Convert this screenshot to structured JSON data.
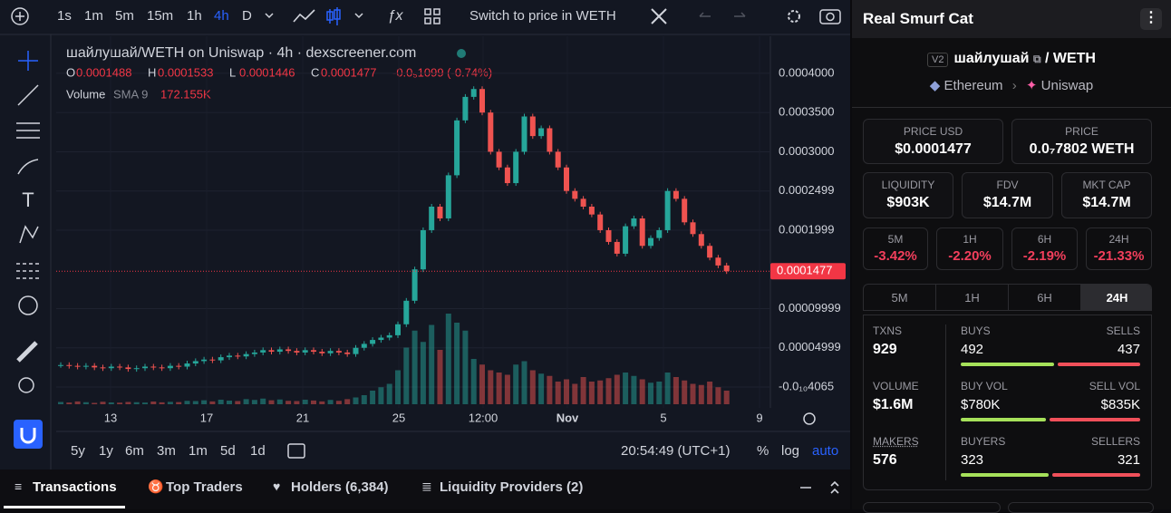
{
  "toolbar": {
    "intervals": [
      "1s",
      "1m",
      "5m",
      "15m",
      "1h",
      "4h",
      "D"
    ],
    "switch": "Switch to price in WETH"
  },
  "chart": {
    "title": "шайлушай/WETH on Uniswap · 4h · dexscreener.com",
    "ohlc": [
      {
        "key": "O",
        "value": 0.0001488
      },
      {
        "key": "H",
        "value": 0.0001533
      },
      {
        "key": "L",
        "value": 0.0001446
      },
      {
        "key": "C",
        "value": 0.0001477
      }
    ],
    "change": "-0.0₅1099 (-0.74%)",
    "volume": {
      "label": "Volume",
      "indicator": "SMA 9",
      "value": "172.155K"
    },
    "ylim": [
      -2.66e-05,
      0.0004473
    ],
    "yticks": [
      {
        "value": 0.0004,
        "label": "0.0004000"
      },
      {
        "value": 0.00035,
        "label": "0.0003500"
      },
      {
        "value": 0.0003,
        "label": "0.0003000"
      },
      {
        "value": 0.00025,
        "label": "0.0002499"
      },
      {
        "value": 0.0002,
        "label": "0.0001999"
      },
      {
        "value": 0.0001,
        "label": "0.00009999"
      },
      {
        "value": 5e-05,
        "label": "0.00004999"
      },
      {
        "value": 0,
        "label": "-0.0₁₀4065"
      }
    ],
    "current_price": {
      "value": 0.0001477,
      "label": "0.0001477"
    },
    "xticks": [
      "13",
      "17",
      "21",
      "25",
      "12:00",
      "Nov",
      "5",
      "9"
    ],
    "closes": [
      2.8e-05,
      2.7e-05,
      2.6e-05,
      2.7e-05,
      2.5e-05,
      2.4e-05,
      2.6e-05,
      2.5e-05,
      2.3e-05,
      2.4e-05,
      2.6e-05,
      2.5e-05,
      2.4e-05,
      2.7e-05,
      2.6e-05,
      3e-05,
      3.3e-05,
      3.5e-05,
      3.4e-05,
      3.8e-05,
      4e-05,
      3.9e-05,
      4.2e-05,
      4.4e-05,
      4.7e-05,
      4.5e-05,
      4.8e-05,
      4.6e-05,
      4.4e-05,
      4.7e-05,
      4.5e-05,
      4.3e-05,
      4.6e-05,
      4.4e-05,
      4.2e-05,
      5e-05,
      5.5e-05,
      6e-05,
      6.3e-05,
      6.6e-05,
      8e-05,
      0.00011,
      0.00015,
      0.0002,
      0.00023,
      0.000215,
      0.00027,
      0.00034,
      0.00037,
      0.00038,
      0.00035,
      0.0003,
      0.00028,
      0.00026,
      0.0003,
      0.000345,
      0.00032,
      0.00033,
      0.0003,
      0.00028,
      0.00025,
      0.00024,
      0.00023,
      0.00022,
      0.0002,
      0.000185,
      0.00017,
      0.000205,
      0.000215,
      0.00018,
      0.00019,
      0.0002,
      0.00025,
      0.00024,
      0.00021,
      0.000195,
      0.00018,
      0.000165,
      0.000155,
      0.0001477
    ],
    "volumes": [
      20,
      15,
      25,
      18,
      12,
      22,
      16,
      14,
      20,
      18,
      15,
      24,
      17,
      21,
      19,
      30,
      28,
      35,
      25,
      40,
      32,
      28,
      45,
      38,
      50,
      35,
      42,
      30,
      28,
      40,
      33,
      25,
      38,
      30,
      45,
      60,
      80,
      120,
      150,
      180,
      300,
      500,
      650,
      550,
      700,
      480,
      800,
      720,
      650,
      400,
      350,
      300,
      280,
      260,
      350,
      380,
      300,
      270,
      250,
      200,
      220,
      180,
      240,
      200,
      210,
      230,
      260,
      280,
      250,
      220,
      190,
      200,
      280,
      240,
      210,
      180,
      170,
      200,
      150,
      120
    ]
  },
  "range_bar": {
    "ranges": [
      "5y",
      "1y",
      "6m",
      "3m",
      "1m",
      "5d",
      "1d"
    ],
    "clock": "20:54:49 (UTC+1)",
    "options": [
      "%",
      "log",
      "auto"
    ]
  },
  "tabs": [
    "Transactions",
    "Top Traders",
    "Holders (6,384)",
    "Liquidity Providers (2)"
  ],
  "panel": {
    "name": "Real Smurf Cat",
    "version": "V2",
    "base": "шайлушай",
    "quote": "/ WETH",
    "chain": "Ethereum",
    "dex": "Uniswap",
    "price_usd": {
      "label": "PRICE USD",
      "value": "$0.0001477"
    },
    "price": {
      "label": "PRICE",
      "value": "0.0₇7802 WETH"
    },
    "liquidity": {
      "label": "LIQUIDITY",
      "value": "$903K"
    },
    "fdv": {
      "label": "FDV",
      "value": "$14.7M"
    },
    "mkt_cap": {
      "label": "MKT CAP",
      "value": "$14.7M"
    },
    "changes": [
      {
        "label": "5M",
        "value": "-3.42%"
      },
      {
        "label": "1H",
        "value": "-2.20%"
      },
      {
        "label": "6H",
        "value": "-2.19%"
      },
      {
        "label": "24H",
        "value": "-21.33%"
      }
    ],
    "periods": [
      "5M",
      "1H",
      "6H",
      "24H"
    ],
    "txns": {
      "label": "TXNS",
      "value": 929
    },
    "buys": {
      "label": "BUYS",
      "value": 492
    },
    "sells": {
      "label": "SELLS",
      "value": 437
    },
    "volume": {
      "label": "VOLUME",
      "value": "$1.6M"
    },
    "buy_vol": {
      "label": "BUY VOL",
      "value": {
        "value": 780000,
        "label": "$780K"
      }
    },
    "sell_vol": {
      "label": "SELL VOL",
      "value": {
        "value": 835000,
        "label": "$835K"
      }
    },
    "makers": {
      "label": "MAKERS",
      "value": 576
    },
    "buyers": {
      "label": "BUYERS",
      "value": 323
    },
    "sellers": {
      "label": "SELLERS",
      "value": 321
    }
  }
}
